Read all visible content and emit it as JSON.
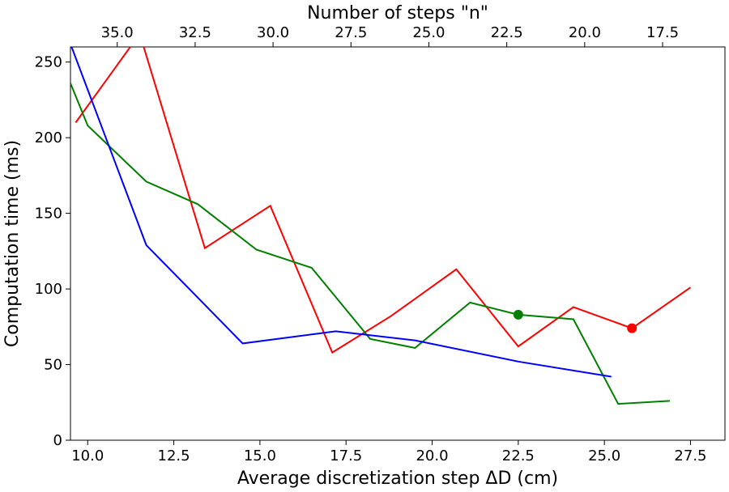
{
  "chart_data": {
    "type": "line",
    "xlabel": "Average discretization step ΔD (cm)",
    "ylabel": "Computation time (ms)",
    "x2label": "Number of steps \"n\"",
    "xlim": [
      9.5,
      28.5
    ],
    "ylim": [
      0,
      260
    ],
    "x2lim": [
      36.5,
      15.5
    ],
    "xticks": [
      "10.0",
      "12.5",
      "15.0",
      "17.5",
      "20.0",
      "22.5",
      "25.0",
      "27.5"
    ],
    "xtick_values": [
      10.0,
      12.5,
      15.0,
      17.5,
      20.0,
      22.5,
      25.0,
      27.5
    ],
    "x2ticks": [
      "35.0",
      "32.5",
      "30.0",
      "27.5",
      "25.0",
      "22.5",
      "20.0",
      "17.5"
    ],
    "x2tick_values": [
      35.0,
      32.5,
      30.0,
      27.5,
      25.0,
      22.5,
      20.0,
      17.5
    ],
    "yticks": [
      "0",
      "50",
      "100",
      "150",
      "200",
      "250"
    ],
    "ytick_values": [
      0,
      50,
      100,
      150,
      200,
      250
    ],
    "grid": false,
    "series": [
      {
        "color": "#ff0000",
        "x": [
          9.65,
          11.3,
          11.6,
          13.4,
          15.3,
          17.1,
          18.8,
          20.7,
          22.5,
          24.1,
          25.8,
          27.5
        ],
        "y": [
          210,
          262,
          262,
          127,
          155,
          58,
          82,
          113,
          62,
          88,
          74,
          101
        ],
        "marker": {
          "x": 25.8,
          "y": 74
        }
      },
      {
        "color": "#008000",
        "x": [
          9.5,
          10.0,
          11.7,
          13.2,
          14.9,
          16.5,
          18.2,
          19.5,
          21.1,
          22.5,
          24.1,
          25.4,
          26.9
        ],
        "y": [
          236,
          208,
          171,
          156,
          126,
          114,
          67,
          61,
          91,
          83,
          80,
          24,
          26
        ],
        "marker": {
          "x": 22.5,
          "y": 83
        }
      },
      {
        "color": "#0000ff",
        "x": [
          9.5,
          11.7,
          14.5,
          17.2,
          19.5,
          22.5,
          25.2
        ],
        "y": [
          262,
          129,
          64,
          72,
          66,
          52,
          42
        ]
      }
    ]
  }
}
